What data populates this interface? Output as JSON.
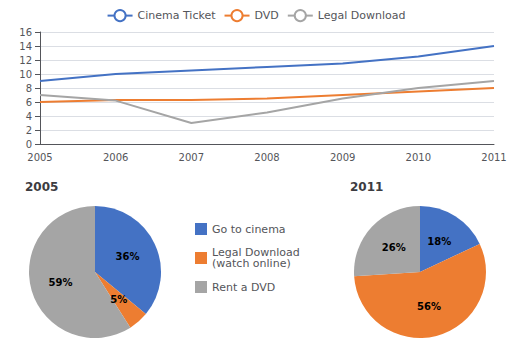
{
  "chart_data": [
    {
      "type": "line",
      "x": [
        2005,
        2006,
        2007,
        2008,
        2009,
        2010,
        2011
      ],
      "xlim": [
        2005,
        2011
      ],
      "xticks": [
        2005,
        2006,
        2007,
        2008,
        2009,
        2010,
        2011
      ],
      "ylim": [
        0,
        16
      ],
      "yticks": [
        0,
        2,
        4,
        6,
        8,
        10,
        12,
        14,
        16
      ],
      "grid": true,
      "legend": "top",
      "series": [
        {
          "name": "Cinema Ticket",
          "color": "#4472C4",
          "values": [
            9,
            10,
            10.5,
            11,
            11.5,
            12.5,
            14
          ]
        },
        {
          "name": "DVD",
          "color": "#ED7D31",
          "values": [
            6,
            6.3,
            6.3,
            6.5,
            7,
            7.5,
            8
          ]
        },
        {
          "name": "Legal Download",
          "color": "#A5A5A5",
          "values": [
            7,
            6.2,
            3,
            4.5,
            6.5,
            8,
            9
          ]
        }
      ]
    },
    {
      "type": "pie",
      "title": "2005",
      "categories": [
        "Go to cinema",
        "Legal Download\n(watch online)",
        "Rent a DVD"
      ],
      "values": [
        36,
        5,
        59
      ],
      "value_labels": [
        "36%",
        "5%",
        "59%"
      ],
      "colors": [
        "#4472C4",
        "#ED7D31",
        "#A5A5A5"
      ],
      "data_labels": true,
      "legend": "right"
    },
    {
      "type": "pie",
      "title": "2011",
      "categories": [
        "Go to cinema",
        "Legal Download\n(watch online)",
        "Rent a DVD"
      ],
      "values": [
        18,
        56,
        26
      ],
      "value_labels": [
        "18%",
        "56%",
        "26%"
      ],
      "colors": [
        "#4472C4",
        "#ED7D31",
        "#A5A5A5"
      ],
      "data_labels": true
    }
  ]
}
